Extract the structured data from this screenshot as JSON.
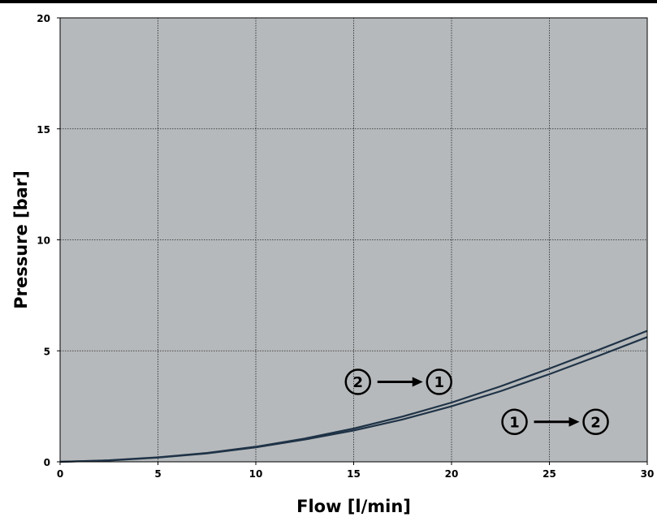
{
  "chart_data": {
    "type": "line",
    "title": "",
    "xlabel": "Flow [l/min]",
    "ylabel": "Pressure [bar]",
    "xlim": [
      0,
      30
    ],
    "ylim": [
      0,
      20
    ],
    "xticks": [
      "0",
      "5",
      "10",
      "15",
      "20",
      "25",
      "30"
    ],
    "yticks": [
      "0",
      "5",
      "10",
      "15",
      "20"
    ],
    "grid": true,
    "background": "#b6b9bb",
    "line_color": "#1f3347",
    "series": [
      {
        "x": [
          0,
          2.5,
          5,
          7.5,
          10,
          12.5,
          15,
          17.5,
          20,
          22.5,
          25,
          27.5,
          30
        ],
        "y": [
          0,
          0.07,
          0.2,
          0.4,
          0.68,
          1.05,
          1.5,
          2.04,
          2.67,
          3.4,
          4.2,
          5.04,
          5.9
        ]
      },
      {
        "x": [
          0,
          2.5,
          5,
          7.5,
          10,
          12.5,
          15,
          17.5,
          20,
          22.5,
          25,
          27.5,
          30
        ],
        "y": [
          0,
          0.06,
          0.19,
          0.38,
          0.65,
          1.0,
          1.41,
          1.91,
          2.5,
          3.18,
          3.95,
          4.77,
          5.62
        ]
      }
    ],
    "annotations": [
      {
        "from": "2",
        "to": "1",
        "x": 17.5,
        "y": 3.6
      },
      {
        "from": "1",
        "to": "2",
        "x": 25.5,
        "y": 1.8
      }
    ]
  }
}
